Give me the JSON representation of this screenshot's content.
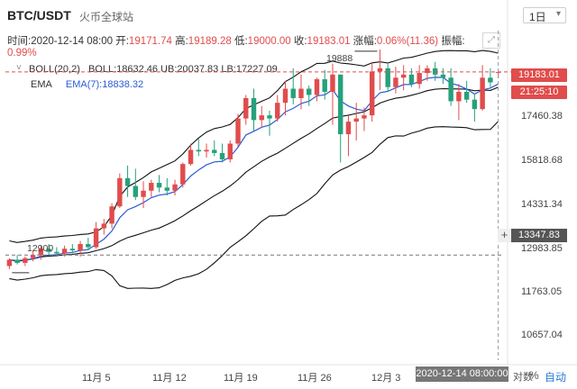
{
  "header": {
    "title": "BTC/USDT",
    "subtitle": "火币全球站",
    "interval": "1日"
  },
  "ohlc": {
    "time_label": "时间:",
    "time": "2020-12-14 08:00",
    "open_label": "开:",
    "open": "19171.74",
    "high_label": "高:",
    "high": "19189.28",
    "low_label": "低:",
    "low": "19000.00",
    "close_label": "收:",
    "close": "19183.01",
    "change_label": "涨幅:",
    "change": "0.06%(11.36)",
    "amp_label": "振幅:",
    "amp": "0.99%"
  },
  "indicators": {
    "boll": "BOLL(20,2)",
    "boll_values": "BOLL:18632.46  UB:20037.83  LB:17227.09",
    "ema": "EMA",
    "ema_value": "EMA(7):18838.32"
  },
  "price_axis": {
    "ticks": [
      "17460.38",
      "15818.68",
      "14331.34",
      "12983.85",
      "11763.05",
      "10657.04"
    ],
    "last_price": "19183.01",
    "countdown": "21:25:10",
    "crosshair_price": "13347.83"
  },
  "annotations": {
    "high_marker": "19888",
    "low_marker": "12900"
  },
  "time_axis": {
    "ticks": [
      "11月 5",
      "11月 12",
      "11月 19",
      "11月 26",
      "12月 3"
    ],
    "crosshair_time": "2020-12-14 08:00:00"
  },
  "toolbar": {
    "percent": "%",
    "log": "对数",
    "auto": "自动"
  },
  "colors": {
    "up": "#e14c4c",
    "down": "#26a17b",
    "ema": "#2b5bd7",
    "boll": "#111111"
  },
  "chart_data": {
    "type": "candlestick",
    "ylim": [
      10000,
      20500
    ],
    "candles": [
      [
        13000,
        13250,
        12900,
        13200
      ],
      [
        13200,
        13350,
        13050,
        13100
      ],
      [
        13100,
        13300,
        13000,
        13250
      ],
      [
        13250,
        13500,
        13150,
        13350
      ],
      [
        13350,
        13650,
        13200,
        13550
      ],
      [
        13550,
        13700,
        13350,
        13450
      ],
      [
        13450,
        13600,
        13300,
        13400
      ],
      [
        13400,
        13650,
        13300,
        13550
      ],
      [
        13550,
        13700,
        13400,
        13500
      ],
      [
        13500,
        13800,
        13300,
        13700
      ],
      [
        13700,
        13900,
        13500,
        13600
      ],
      [
        13600,
        14400,
        13550,
        14200
      ],
      [
        14200,
        14500,
        14000,
        14350
      ],
      [
        14350,
        15000,
        14200,
        14900
      ],
      [
        14900,
        15950,
        14850,
        15800
      ],
      [
        15800,
        16200,
        15200,
        15550
      ],
      [
        15550,
        16100,
        15100,
        15200
      ],
      [
        15200,
        15700,
        14850,
        15400
      ],
      [
        15400,
        15750,
        15200,
        15650
      ],
      [
        15650,
        15900,
        15350,
        15500
      ],
      [
        15500,
        15800,
        15250,
        15400
      ],
      [
        15400,
        15750,
        15250,
        15600
      ],
      [
        15600,
        16300,
        15500,
        16250
      ],
      [
        16250,
        16900,
        16200,
        16700
      ],
      [
        16700,
        17050,
        16500,
        16650
      ],
      [
        16650,
        16900,
        16450,
        16700
      ],
      [
        16700,
        17000,
        16500,
        16600
      ],
      [
        16600,
        16900,
        16300,
        16400
      ],
      [
        16400,
        17000,
        16300,
        16900
      ],
      [
        16900,
        17850,
        16800,
        17700
      ],
      [
        17700,
        18450,
        17500,
        18350
      ],
      [
        18350,
        18650,
        17300,
        17650
      ],
      [
        17650,
        18100,
        17400,
        17800
      ],
      [
        17800,
        17950,
        17150,
        17700
      ],
      [
        17700,
        18450,
        17600,
        18200
      ],
      [
        18200,
        18900,
        17800,
        18650
      ],
      [
        18650,
        19300,
        18150,
        18350
      ],
      [
        18350,
        19100,
        18000,
        18650
      ],
      [
        18650,
        18750,
        18100,
        18450
      ],
      [
        18450,
        19000,
        18250,
        18950
      ],
      [
        18950,
        19250,
        18300,
        18550
      ],
      [
        18550,
        19450,
        17500,
        19100
      ],
      [
        19100,
        19100,
        16300,
        17200
      ],
      [
        17200,
        17800,
        16500,
        17600
      ],
      [
        17600,
        18200,
        17000,
        17700
      ],
      [
        17700,
        18050,
        17300,
        17800
      ],
      [
        17800,
        19500,
        17600,
        19200
      ],
      [
        19200,
        19900,
        18600,
        19300
      ],
      [
        19300,
        19500,
        18550,
        18700
      ],
      [
        18700,
        19350,
        18500,
        19000
      ],
      [
        19000,
        19400,
        18600,
        19100
      ],
      [
        19100,
        19300,
        18700,
        18800
      ],
      [
        18800,
        19400,
        18650,
        19150
      ],
      [
        19150,
        19400,
        18900,
        19300
      ],
      [
        19300,
        19500,
        18900,
        19100
      ],
      [
        19100,
        19300,
        18800,
        19000
      ],
      [
        19000,
        19300,
        18100,
        18250
      ],
      [
        18250,
        18800,
        17650,
        18550
      ],
      [
        18550,
        18900,
        18200,
        18300
      ],
      [
        18300,
        18500,
        17600,
        18000
      ],
      [
        18000,
        19400,
        17950,
        19000
      ],
      [
        19000,
        19300,
        18700,
        18850
      ],
      [
        19172,
        19189,
        19000,
        19183
      ]
    ],
    "x_ticks": [
      "11月 5",
      "11月 12",
      "11月 19",
      "11月 26",
      "12月 3"
    ]
  }
}
